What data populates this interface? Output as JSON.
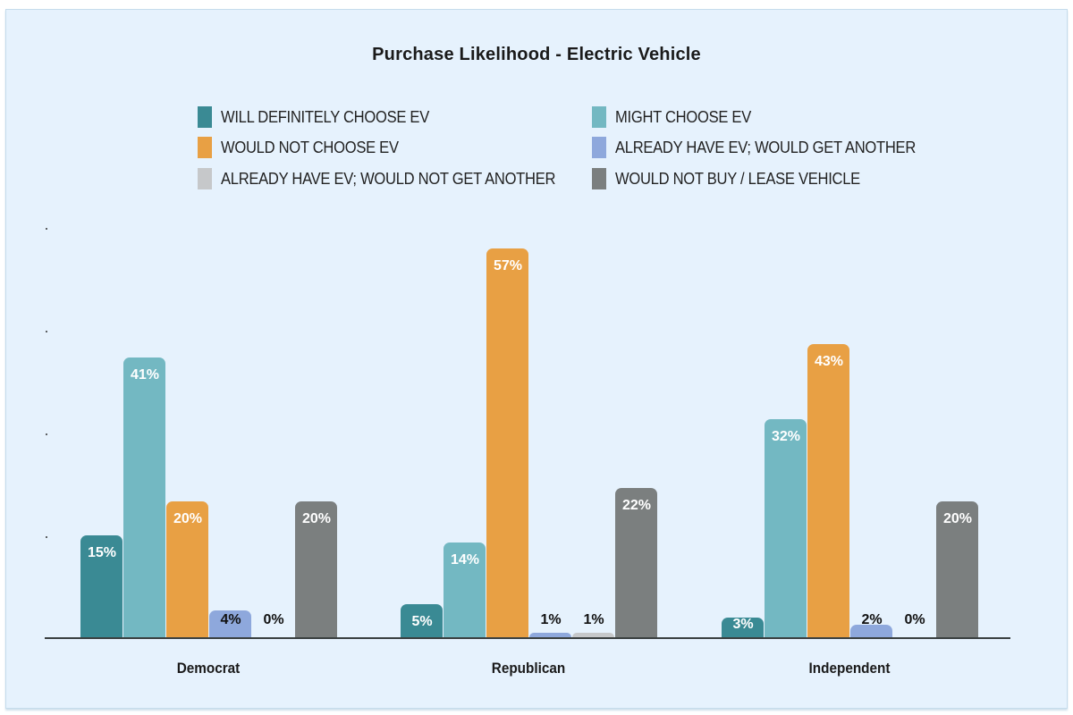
{
  "chart_data": {
    "type": "bar",
    "title": "Purchase Likelihood - Electric Vehicle",
    "xlabel": "",
    "ylabel": "",
    "categories": [
      "Democrat",
      "Republican",
      "Independent"
    ],
    "series": [
      {
        "name": "WILL DEFINITELY CHOOSE EV",
        "color": "#3a8a94",
        "values": [
          15,
          5,
          3
        ]
      },
      {
        "name": "MIGHT CHOOSE EV",
        "color": "#73b8c2",
        "values": [
          41,
          14,
          32
        ]
      },
      {
        "name": "WOULD NOT CHOOSE EV",
        "color": "#e8a044",
        "values": [
          20,
          57,
          43
        ]
      },
      {
        "name": "ALREADY HAVE EV; WOULD GET ANOTHER",
        "color": "#8ea8dc",
        "values": [
          4,
          1,
          2
        ]
      },
      {
        "name": "ALREADY HAVE EV; WOULD NOT GET ANOTHER",
        "color": "#c6c8ca",
        "values": [
          0,
          1,
          0
        ]
      },
      {
        "name": "WOULD NOT BUY / LEASE VEHICLE",
        "color": "#7b7f7f",
        "values": [
          20,
          22,
          20
        ]
      }
    ],
    "value_labels": [
      [
        "15%",
        "41%",
        "20%",
        "4%",
        "0%",
        "20%"
      ],
      [
        "5%",
        "14%",
        "57%",
        "1%",
        "1%",
        "22%"
      ],
      [
        "3%",
        "32%",
        "43%",
        "2%",
        "0%",
        "20%"
      ]
    ],
    "ylim": [
      0,
      60
    ],
    "grid": false,
    "legend_position": "top",
    "y_tick_labels_visible": false
  },
  "title": "Purchase Likelihood - Electric Vehicle",
  "legend": [
    {
      "label": "WILL DEFINITELY CHOOSE EV",
      "color": "#3a8a94"
    },
    {
      "label": "MIGHT CHOOSE EV",
      "color": "#73b8c2"
    },
    {
      "label": "WOULD NOT CHOOSE EV",
      "color": "#e8a044"
    },
    {
      "label": "ALREADY HAVE EV; WOULD GET ANOTHER",
      "color": "#8ea8dc"
    },
    {
      "label": "ALREADY HAVE EV; WOULD NOT GET ANOTHER",
      "color": "#c6c8ca"
    },
    {
      "label": "WOULD NOT BUY / LEASE VEHICLE",
      "color": "#7b7f7f"
    }
  ],
  "categories": [
    "Democrat",
    "Republican",
    "Independent"
  ]
}
